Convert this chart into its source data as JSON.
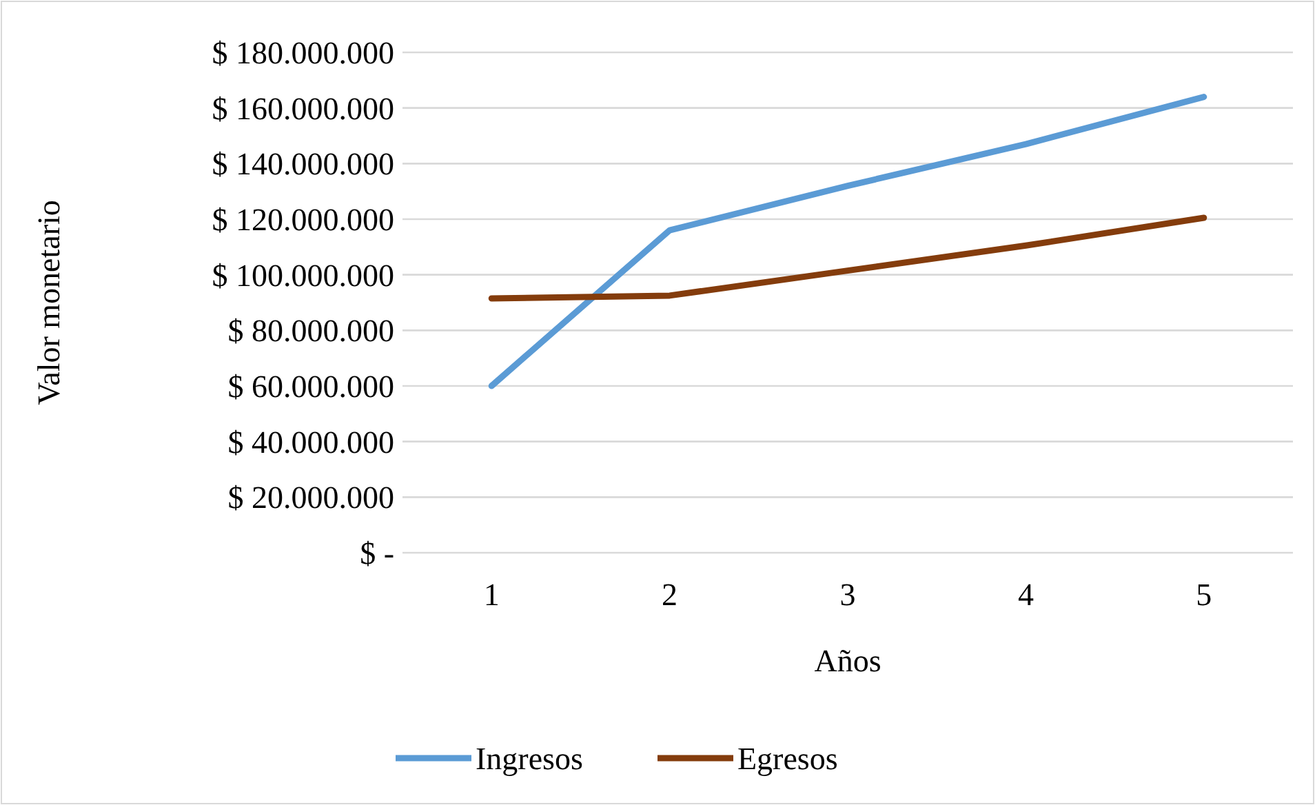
{
  "chart_data": {
    "type": "line",
    "xlabel": "Años",
    "ylabel": "Valor monetario",
    "categories": [
      "1",
      "2",
      "3",
      "4",
      "5"
    ],
    "series": [
      {
        "name": "Ingresos",
        "color": "#5b9bd5",
        "values": [
          60000000,
          116000000,
          132000000,
          147000000,
          164000000
        ]
      },
      {
        "name": "Egresos",
        "color": "#843c0c",
        "values": [
          91500000,
          92500000,
          101500000,
          110500000,
          120500000
        ]
      }
    ],
    "ylim": [
      0,
      180000000
    ],
    "yticks": [
      {
        "value": 0,
        "label": "$ -"
      },
      {
        "value": 20000000,
        "label": "$ 20.000.000"
      },
      {
        "value": 40000000,
        "label": "$ 40.000.000"
      },
      {
        "value": 60000000,
        "label": "$ 60.000.000"
      },
      {
        "value": 80000000,
        "label": "$ 80.000.000"
      },
      {
        "value": 100000000,
        "label": "$ 100.000.000"
      },
      {
        "value": 120000000,
        "label": "$ 120.000.000"
      },
      {
        "value": 140000000,
        "label": "$ 140.000.000"
      },
      {
        "value": 160000000,
        "label": "$ 160.000.000"
      },
      {
        "value": 180000000,
        "label": "$ 180.000.000"
      }
    ],
    "grid": "y",
    "legend": "bottom",
    "marker": "none",
    "line_style": "solid"
  }
}
